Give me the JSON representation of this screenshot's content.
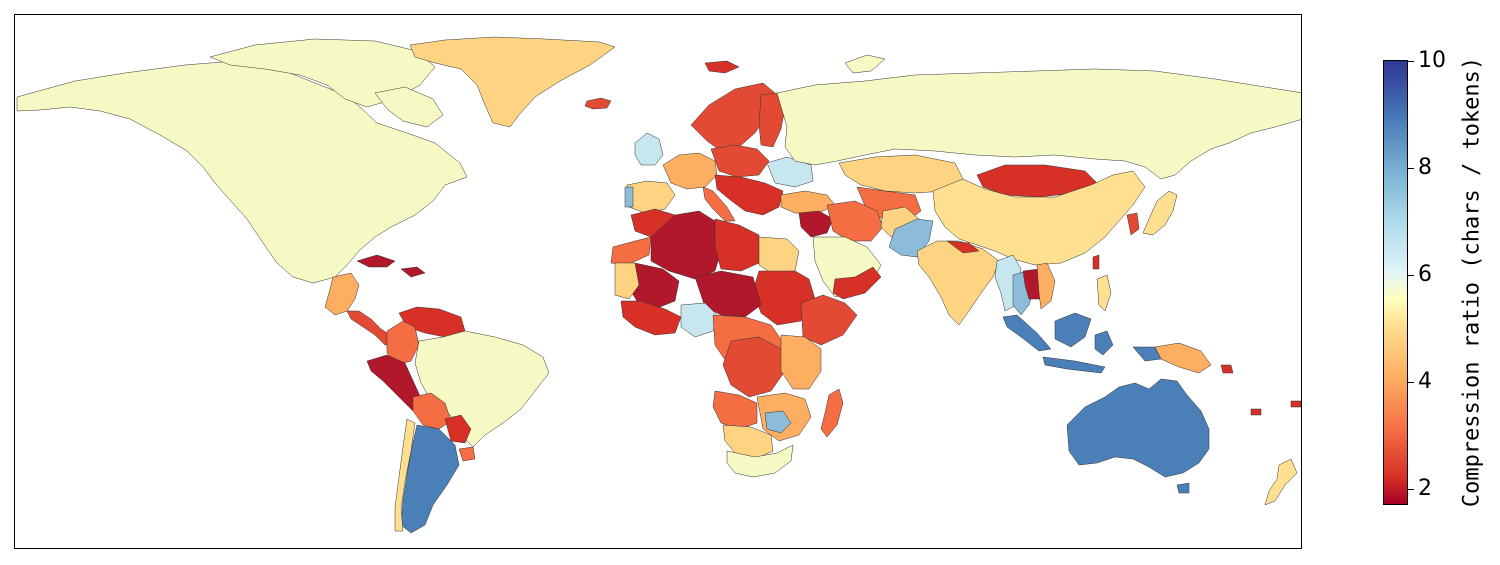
{
  "colorbar": {
    "label": "Compression ratio (chars / tokens)",
    "min": 1.7,
    "max": 10,
    "ticks": [
      "10",
      "8",
      "6",
      "4",
      "2"
    ],
    "colormap": "RdYlBu"
  },
  "map": {
    "projection": "equirectangular",
    "colors": {
      "c_2": "#b2182b",
      "c_2_5": "#d73027",
      "c_3": "#e34a33",
      "c_3_5": "#f46d43",
      "c_4": "#fdae61",
      "c_4_5": "#fed483",
      "c_5": "#fee090",
      "c_6": "#f7f9c4",
      "c_7": "#c6e6f0",
      "c_7_5": "#a7d3e8",
      "c_8": "#8cbcda",
      "c_9": "#4a7fb8"
    }
  }
}
